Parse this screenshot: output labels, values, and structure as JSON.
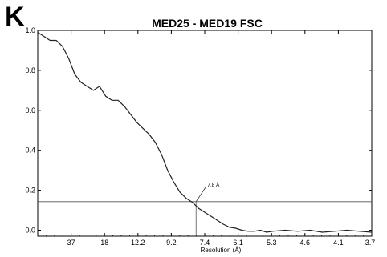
{
  "panel_label": "K",
  "chart_data": {
    "type": "line",
    "title": "MED25 - MED19 FSC",
    "xlabel": "Resolution (Å)",
    "ylabel": "",
    "x_tick_labels": [
      "37",
      "18",
      "12.2",
      "9.2",
      "7.4",
      "6.1",
      "5.3",
      "4.6",
      "4.1",
      "3.7"
    ],
    "y_ticks": [
      0.0,
      0.2,
      0.4,
      0.6,
      0.8,
      1.0
    ],
    "y_tick_labels": [
      "0.0",
      "0.2",
      "0.4",
      "0.6",
      "0.8",
      "1.0"
    ],
    "xlim": [
      0,
      0.27
    ],
    "ylim": [
      -0.03,
      1.0
    ],
    "x_scale": "spatial frequency (1/Å); tick labels show resolution in Å",
    "grid": false,
    "legend": "none",
    "threshold": {
      "y": 0.143,
      "label": ""
    },
    "crossing": {
      "x": 0.128,
      "label": "7.8 Å"
    },
    "series": [
      {
        "name": "",
        "color": "#222222",
        "x": [
          0.0,
          0.005,
          0.01,
          0.015,
          0.02,
          0.025,
          0.03,
          0.035,
          0.04,
          0.045,
          0.05,
          0.055,
          0.06,
          0.065,
          0.07,
          0.075,
          0.08,
          0.085,
          0.09,
          0.095,
          0.1,
          0.105,
          0.11,
          0.115,
          0.12,
          0.125,
          0.13,
          0.135,
          0.14,
          0.145,
          0.15,
          0.155,
          0.16,
          0.165,
          0.17,
          0.175,
          0.18,
          0.185,
          0.19,
          0.2,
          0.21,
          0.22,
          0.23,
          0.24,
          0.25,
          0.26,
          0.27
        ],
        "y": [
          0.99,
          0.97,
          0.95,
          0.95,
          0.92,
          0.86,
          0.78,
          0.74,
          0.72,
          0.7,
          0.72,
          0.67,
          0.65,
          0.65,
          0.62,
          0.58,
          0.54,
          0.51,
          0.48,
          0.44,
          0.38,
          0.3,
          0.24,
          0.19,
          0.16,
          0.14,
          0.11,
          0.09,
          0.07,
          0.05,
          0.03,
          0.015,
          0.01,
          0.0,
          -0.005,
          -0.005,
          0.0,
          -0.01,
          -0.005,
          0.0,
          -0.005,
          0.0,
          -0.01,
          -0.005,
          0.0,
          -0.005,
          -0.01
        ]
      }
    ]
  }
}
